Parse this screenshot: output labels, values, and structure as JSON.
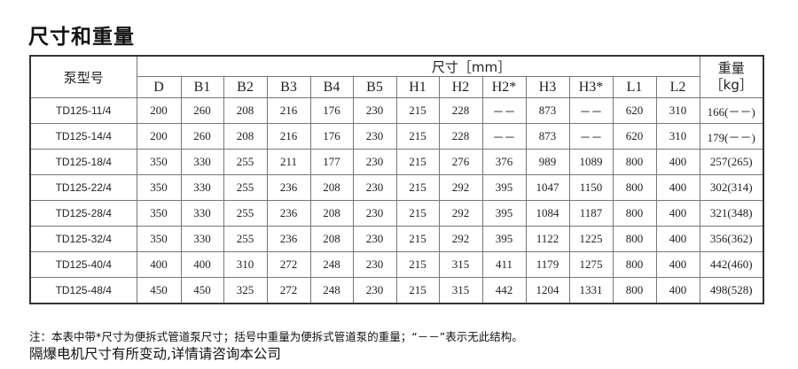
{
  "title": "尺寸和重量",
  "table": {
    "model_header": "泵型号",
    "dim_header": "尺寸［mm］",
    "weight_header_line1": "重量",
    "weight_header_line2": "［kg］",
    "columns": [
      "D",
      "B1",
      "B2",
      "B3",
      "B4",
      "B5",
      "H1",
      "H2",
      "H2*",
      "H3",
      "H3*",
      "L1",
      "L2"
    ],
    "rows": [
      {
        "model": "TD125-11/4",
        "values": [
          "200",
          "260",
          "208",
          "216",
          "176",
          "230",
          "215",
          "228",
          "－－",
          "873",
          "－－",
          "620",
          "310"
        ],
        "weight": "166(－－)"
      },
      {
        "model": "TD125-14/4",
        "values": [
          "200",
          "260",
          "208",
          "216",
          "176",
          "230",
          "215",
          "228",
          "－－",
          "873",
          "－－",
          "620",
          "310"
        ],
        "weight": "179(－－)"
      },
      {
        "model": "TD125-18/4",
        "values": [
          "350",
          "330",
          "255",
          "211",
          "177",
          "230",
          "215",
          "276",
          "376",
          "989",
          "1089",
          "800",
          "400"
        ],
        "weight": "257(265)"
      },
      {
        "model": "TD125-22/4",
        "values": [
          "350",
          "330",
          "255",
          "236",
          "208",
          "230",
          "215",
          "292",
          "395",
          "1047",
          "1150",
          "800",
          "400"
        ],
        "weight": "302(314)"
      },
      {
        "model": "TD125-28/4",
        "values": [
          "350",
          "330",
          "255",
          "236",
          "208",
          "230",
          "215",
          "292",
          "395",
          "1084",
          "1187",
          "800",
          "400"
        ],
        "weight": "321(348)"
      },
      {
        "model": "TD125-32/4",
        "values": [
          "350",
          "330",
          "255",
          "236",
          "208",
          "230",
          "215",
          "292",
          "395",
          "1122",
          "1225",
          "800",
          "400"
        ],
        "weight": "356(362)"
      },
      {
        "model": "TD125-40/4",
        "values": [
          "400",
          "400",
          "310",
          "272",
          "248",
          "230",
          "215",
          "315",
          "411",
          "1179",
          "1275",
          "800",
          "400"
        ],
        "weight": "442(460)"
      },
      {
        "model": "TD125-48/4",
        "values": [
          "450",
          "450",
          "325",
          "272",
          "248",
          "230",
          "215",
          "315",
          "442",
          "1204",
          "1331",
          "800",
          "400"
        ],
        "weight": "498(528)"
      }
    ]
  },
  "notes": {
    "line1": "注：本表中带*尺寸为便拆式管道泵尺寸；括号中重量为便拆式管道泵的重量；“－－”表示无此结构。",
    "line2": "隔爆电机尺寸有所变动,详情请咨询本公司"
  }
}
